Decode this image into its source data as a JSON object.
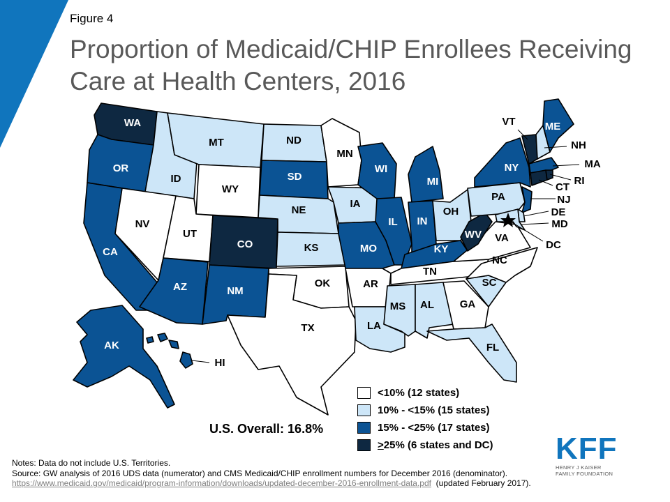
{
  "figure_label": "Figure 4",
  "title": "Proportion of Medicaid/CHIP Enrollees Receiving Care at Health Centers, 2016",
  "colors": {
    "accent": "#1075bd",
    "lt10": "#ffffff",
    "10to15": "#cde6f8",
    "15to25": "#0b5394",
    "gt25": "#0e2841"
  },
  "legend": [
    {
      "category": "lt10",
      "label": "<10% (12 states)"
    },
    {
      "category": "10to15",
      "label": "10% - <15% (15 states)"
    },
    {
      "category": "15to25",
      "label": "15% - <25% (17 states)"
    },
    {
      "category": "gt25",
      "prefix": ">",
      "label": "25%  (6 states and DC)"
    }
  ],
  "us_overall": "U.S. Overall: 16.8%",
  "states": [
    {
      "abbr": "WA",
      "category": "gt25"
    },
    {
      "abbr": "OR",
      "category": "15to25"
    },
    {
      "abbr": "CA",
      "category": "15to25"
    },
    {
      "abbr": "ID",
      "category": "10to15"
    },
    {
      "abbr": "NV",
      "category": "lt10"
    },
    {
      "abbr": "MT",
      "category": "10to15"
    },
    {
      "abbr": "WY",
      "category": "lt10"
    },
    {
      "abbr": "UT",
      "category": "lt10"
    },
    {
      "abbr": "AZ",
      "category": "15to25"
    },
    {
      "abbr": "CO",
      "category": "gt25"
    },
    {
      "abbr": "NM",
      "category": "15to25"
    },
    {
      "abbr": "ND",
      "category": "10to15"
    },
    {
      "abbr": "SD",
      "category": "15to25"
    },
    {
      "abbr": "NE",
      "category": "10to15"
    },
    {
      "abbr": "KS",
      "category": "10to15"
    },
    {
      "abbr": "OK",
      "category": "lt10"
    },
    {
      "abbr": "TX",
      "category": "lt10"
    },
    {
      "abbr": "MN",
      "category": "lt10"
    },
    {
      "abbr": "IA",
      "category": "10to15"
    },
    {
      "abbr": "MO",
      "category": "15to25"
    },
    {
      "abbr": "AR",
      "category": "lt10"
    },
    {
      "abbr": "LA",
      "category": "10to15"
    },
    {
      "abbr": "WI",
      "category": "15to25"
    },
    {
      "abbr": "IL",
      "category": "15to25"
    },
    {
      "abbr": "MI",
      "category": "15to25"
    },
    {
      "abbr": "IN",
      "category": "15to25"
    },
    {
      "abbr": "OH",
      "category": "10to15"
    },
    {
      "abbr": "KY",
      "category": "15to25"
    },
    {
      "abbr": "TN",
      "category": "lt10"
    },
    {
      "abbr": "MS",
      "category": "10to15"
    },
    {
      "abbr": "AL",
      "category": "10to15"
    },
    {
      "abbr": "GA",
      "category": "lt10"
    },
    {
      "abbr": "FL",
      "category": "10to15"
    },
    {
      "abbr": "SC",
      "category": "10to15"
    },
    {
      "abbr": "NC",
      "category": "lt10"
    },
    {
      "abbr": "VA",
      "category": "lt10"
    },
    {
      "abbr": "WV",
      "category": "gt25"
    },
    {
      "abbr": "PA",
      "category": "10to15"
    },
    {
      "abbr": "NY",
      "category": "15to25"
    },
    {
      "abbr": "VT",
      "category": "gt25"
    },
    {
      "abbr": "NH",
      "category": "10to15"
    },
    {
      "abbr": "ME",
      "category": "15to25"
    },
    {
      "abbr": "MA",
      "category": "15to25"
    },
    {
      "abbr": "RI",
      "category": "gt25"
    },
    {
      "abbr": "CT",
      "category": "gt25"
    },
    {
      "abbr": "NJ",
      "category": "15to25"
    },
    {
      "abbr": "DE",
      "category": "10to15"
    },
    {
      "abbr": "MD",
      "category": "10to15"
    },
    {
      "abbr": "DC",
      "category": "gt25"
    },
    {
      "abbr": "AK",
      "category": "15to25"
    },
    {
      "abbr": "HI",
      "category": "15to25"
    }
  ],
  "notes": {
    "line1": "Notes: Data do not include U.S. Territories.",
    "line2": "Source: GW analysis of 2016 UDS data (numerator)  and CMS Medicaid/CHIP enrollment numbers for December 2016 (denominator).",
    "link": "https://www.medicaid.gov/medicaid/program-information/downloads/updated-december-2016-enrollment-data.pdf",
    "updated": "(updated February 2017)."
  },
  "logo": {
    "mark": "KFF",
    "line1": "HENRY J KAISER",
    "line2": "FAMILY FOUNDATION"
  }
}
